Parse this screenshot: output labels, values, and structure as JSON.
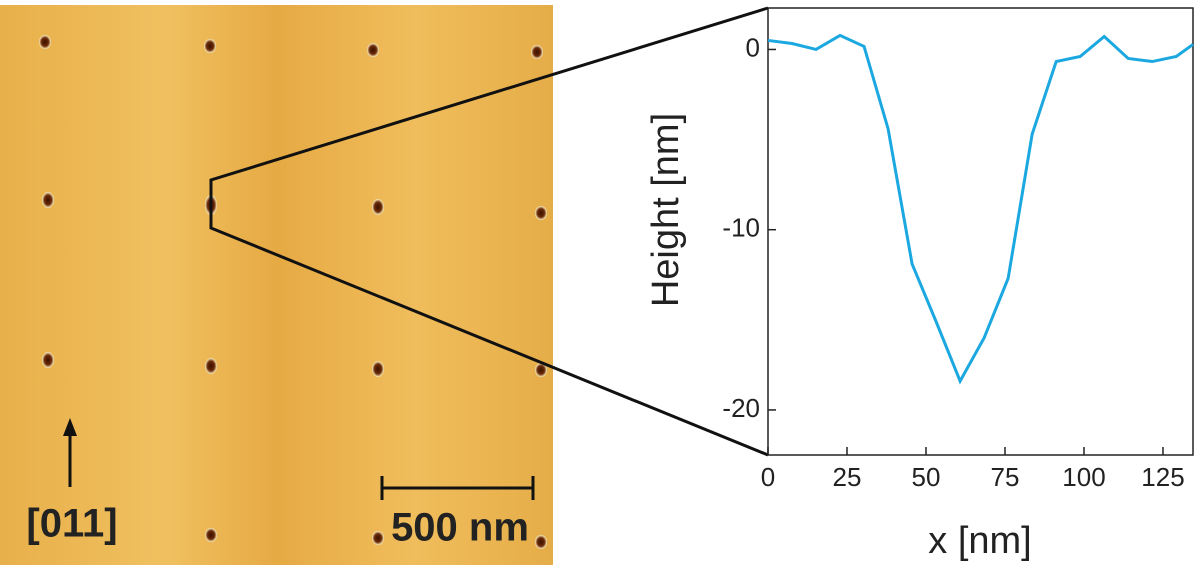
{
  "chart_data": {
    "type": "line",
    "x_label": "x [nm]",
    "y_label": "Height [nm]",
    "x": [
      0,
      7.6,
      15.2,
      22.8,
      30.4,
      38,
      45.6,
      53.2,
      60.8,
      68.4,
      76,
      83.6,
      91.2,
      98.8,
      106.4,
      114,
      121.6,
      129.2,
      134.5
    ],
    "values": [
      0.5,
      0.33,
      0,
      0.78,
      0.17,
      -4.4,
      -11.9,
      -15.1,
      -18.4,
      -16,
      -12.7,
      -4.7,
      -0.67,
      -0.39,
      0.72,
      -0.5,
      -0.67,
      -0.39,
      0.28
    ],
    "color": "#1ba8e0",
    "xlim": [
      0,
      134.5
    ],
    "ylim": [
      -22.5,
      2.3
    ],
    "xticks": [
      0,
      25,
      50,
      75,
      100,
      125
    ],
    "yticks": [
      0,
      -10,
      -20
    ]
  },
  "image_panel": {
    "direction_label": "[011]",
    "scale_label": "500 nm"
  }
}
